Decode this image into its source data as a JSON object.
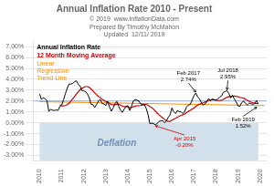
{
  "chart_data": {
    "type": "line",
    "title": "Annual Inflation Rate 2010 - Present",
    "subtitle": [
      "© 2019  www.InflationData.com",
      "Prepared By Timothy McMahon",
      "Updated  12/11/ 2019"
    ],
    "x": [
      2010,
      2010.0833,
      2010.1667,
      2010.25,
      2010.3333,
      2010.4167,
      2010.5,
      2010.5833,
      2010.6667,
      2010.75,
      2010.8333,
      2010.9167,
      2011,
      2011.0833,
      2011.1667,
      2011.25,
      2011.3333,
      2011.4167,
      2011.5,
      2011.5833,
      2011.6667,
      2011.75,
      2011.8333,
      2011.9167,
      2012,
      2012.0833,
      2012.1667,
      2012.25,
      2012.3333,
      2012.4167,
      2012.5,
      2012.5833,
      2012.6667,
      2012.75,
      2012.8333,
      2012.9167,
      2013,
      2013.0833,
      2013.1667,
      2013.25,
      2013.3333,
      2013.4167,
      2013.5,
      2013.5833,
      2013.6667,
      2013.75,
      2013.8333,
      2013.9167,
      2014,
      2014.0833,
      2014.1667,
      2014.25,
      2014.3333,
      2014.4167,
      2014.5,
      2014.5833,
      2014.6667,
      2014.75,
      2014.8333,
      2014.9167,
      2015,
      2015.0833,
      2015.1667,
      2015.25,
      2015.3333,
      2015.4167,
      2015.5,
      2015.5833,
      2015.6667,
      2015.75,
      2015.8333,
      2015.9167,
      2016,
      2016.0833,
      2016.1667,
      2016.25,
      2016.3333,
      2016.4167,
      2016.5,
      2016.5833,
      2016.6667,
      2016.75,
      2016.8333,
      2016.9167,
      2017,
      2017.0833,
      2017.1667,
      2017.25,
      2017.3333,
      2017.4167,
      2017.5,
      2017.5833,
      2017.6667,
      2017.75,
      2017.8333,
      2017.9167,
      2018,
      2018.0833,
      2018.1667,
      2018.25,
      2018.3333,
      2018.4167,
      2018.5,
      2018.5833,
      2018.6667,
      2018.75,
      2018.8333,
      2018.9167,
      2019,
      2019.0833,
      2019.1667,
      2019.25,
      2019.3333,
      2019.4167,
      2019.5,
      2019.5833,
      2019.6667,
      2019.75,
      2019.8333,
      2019.9167
    ],
    "series": [
      {
        "name": "Annual Inflation Rate",
        "color": "#000000",
        "values": [
          2.63,
          2.14,
          2.31,
          2.2,
          2.02,
          1.05,
          1.24,
          1.15,
          1.14,
          1.17,
          1.14,
          1.5,
          1.63,
          2.11,
          2.68,
          3.16,
          3.57,
          3.56,
          3.63,
          3.77,
          3.87,
          3.53,
          3.39,
          2.96,
          2.93,
          2.87,
          2.65,
          2.3,
          1.7,
          1.66,
          1.41,
          1.69,
          1.99,
          2.16,
          1.76,
          1.74,
          1.59,
          1.98,
          1.47,
          1.06,
          1.36,
          1.75,
          1.96,
          1.52,
          1.18,
          0.96,
          1.24,
          1.5,
          1.58,
          1.13,
          1.51,
          2.0,
          2.13,
          2.07,
          1.99,
          1.74,
          1.66,
          1.66,
          1.32,
          0.76,
          -0.09,
          -0.03,
          -0.07,
          -0.2,
          -0.04,
          0.12,
          0.17,
          0.2,
          0.0,
          0.17,
          0.5,
          0.73,
          1.37,
          1.02,
          0.85,
          1.13,
          1.02,
          1.01,
          0.84,
          1.06,
          1.46,
          1.64,
          1.69,
          2.07,
          2.5,
          2.74,
          2.38,
          2.2,
          1.87,
          1.63,
          1.73,
          1.94,
          2.23,
          2.04,
          2.2,
          2.11,
          2.07,
          2.21,
          2.36,
          2.46,
          2.8,
          2.87,
          2.95,
          2.7,
          2.28,
          2.52,
          2.18,
          1.91,
          1.55,
          1.52,
          1.86,
          2.0,
          1.79,
          1.65,
          1.81,
          1.75,
          1.71,
          1.76,
          2.05,
          1.74
        ]
      },
      {
        "name": "12 Month Moving Average",
        "color": "#cc0000",
        "values": [
          null,
          null,
          null,
          null,
          null,
          null,
          null,
          null,
          null,
          null,
          null,
          1.6408,
          1.5575,
          1.555,
          1.5858,
          1.6658,
          1.795,
          2.0042,
          2.2033,
          2.4217,
          2.6492,
          2.8458,
          3.0333,
          3.155,
          3.2633,
          3.3267,
          3.3242,
          3.2525,
          3.0967,
          2.9383,
          2.7533,
          2.58,
          2.4233,
          2.3092,
          2.1733,
          2.0717,
          1.96,
          1.8858,
          1.7875,
          1.6842,
          1.6558,
          1.6633,
          1.7092,
          1.695,
          1.6275,
          1.5275,
          1.4842,
          1.4642,
          1.4633,
          1.3925,
          1.3958,
          1.4742,
          1.5383,
          1.565,
          1.5675,
          1.5858,
          1.6258,
          1.6842,
          1.6908,
          1.6292,
          1.49,
          1.3933,
          1.2617,
          1.0783,
          0.8975,
          0.735,
          0.5833,
          0.455,
          0.3167,
          0.1925,
          0.1242,
          0.1217,
          0.2433,
          0.3308,
          0.4075,
          0.5183,
          0.6067,
          0.6808,
          0.7367,
          0.8083,
          0.93,
          1.0525,
          1.1517,
          1.2633,
          1.3575,
          1.5008,
          1.6283,
          1.7175,
          1.7883,
          1.84,
          1.9142,
          1.9875,
          2.0517,
          2.085,
          2.1275,
          2.1308,
          2.095,
          2.0508,
          2.0492,
          2.0708,
          2.1483,
          2.2517,
          2.3533,
          2.4167,
          2.4208,
          2.4608,
          2.4592,
          2.4425,
          2.3992,
          2.3417,
          2.3,
          2.2617,
          2.1775,
          2.0758,
          1.9808,
          1.9017,
          1.8542,
          1.7908,
          1.78,
          1.7658
        ]
      },
      {
        "name": "Linear\nRegression\nTrend Line",
        "color": "#ff8c00",
        "x": [
          2010.0,
          2020.2
        ],
        "values": [
          1.9412,
          1.5859
        ]
      }
    ],
    "xlim": [
      2009.7,
      2020.3
    ],
    "xticks": [
      2010,
      2011,
      2012,
      2013,
      2014,
      2015,
      2016,
      2017,
      2018,
      2019,
      2020
    ],
    "ylim": [
      -3.5,
      7.5
    ],
    "yticks": [
      {
        "value": -3.0,
        "label": "-3.00%"
      },
      {
        "value": -2.0,
        "label": "-2.00%"
      },
      {
        "value": -1.0,
        "label": "-1.00%"
      },
      {
        "value": 0.0,
        "label": "0.00%"
      },
      {
        "value": 1.0,
        "label": "1.00%"
      },
      {
        "value": 2.0,
        "label": "2.00%"
      },
      {
        "value": 3.0,
        "label": "3.00%"
      },
      {
        "value": 4.0,
        "label": "4.00%"
      },
      {
        "value": 5.0,
        "label": "5.00%"
      },
      {
        "value": 6.0,
        "label": "6.00%"
      },
      {
        "value": 7.0,
        "label": "7.00%"
      }
    ],
    "grid": "y",
    "legend": "upper left",
    "reference_lines": [
      {
        "y": 2.0,
        "color": "#6688cc"
      }
    ],
    "shaded_regions": [
      {
        "y_from": -3.5,
        "y_to": 0.0,
        "color": "#ccdde8",
        "label": "Deflation",
        "label_x": 2013.5,
        "label_y": -1.9,
        "label_color": "#7090b0"
      }
    ],
    "annotations": [
      {
        "text": "Feb 2017\n2.74%",
        "x": 2017.08,
        "y": 2.74,
        "color": "#000000"
      },
      {
        "text": "Jul 2018\n2.95%",
        "x": 2018.5,
        "y": 2.95,
        "color": "#000000"
      },
      {
        "text": "Apr 2015\n-0.20%",
        "x": 2015.25,
        "y": -0.2,
        "color": "#cc0000"
      },
      {
        "text": "Feb 2019\n1.52%",
        "x": 2019.85,
        "y": 1.52,
        "color": "#000000"
      }
    ]
  }
}
